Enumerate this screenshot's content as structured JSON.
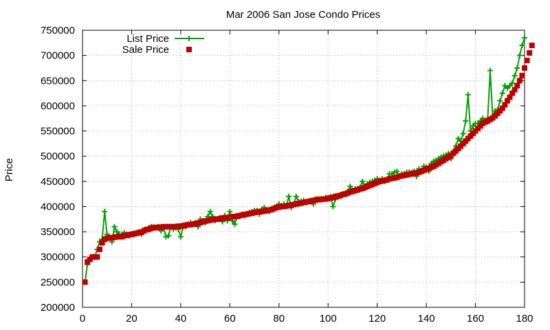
{
  "chart_data": {
    "type": "line",
    "title": "Mar 2006 San Jose Condo Prices",
    "xlabel": "",
    "ylabel": "Price",
    "xlim": [
      0,
      180
    ],
    "ylim": [
      200000,
      750000
    ],
    "x_ticks": [
      0,
      20,
      40,
      60,
      80,
      100,
      120,
      140,
      160,
      180
    ],
    "y_ticks": [
      200000,
      250000,
      300000,
      350000,
      400000,
      450000,
      500000,
      550000,
      600000,
      650000,
      700000,
      750000
    ],
    "x_tick_labels": [
      "0",
      "20",
      "40",
      "60",
      "80",
      "100",
      "120",
      "140",
      "160",
      "180"
    ],
    "y_tick_labels": [
      "200000",
      "250000",
      "300000",
      "350000",
      "400000",
      "450000",
      "500000",
      "550000",
      "600000",
      "650000",
      "700000",
      "750000"
    ],
    "grid": true,
    "legend_position": "top-left",
    "series": [
      {
        "name": "List Price",
        "style": "line+cross",
        "color": "#00a000",
        "values": [
          250000,
          285000,
          295000,
          300000,
          300000,
          315000,
          330000,
          335000,
          390000,
          345000,
          340000,
          330000,
          360000,
          350000,
          345000,
          345000,
          348000,
          345000,
          342000,
          345000,
          345000,
          348000,
          350000,
          345000,
          350000,
          355000,
          358000,
          360000,
          360000,
          358000,
          360000,
          352000,
          358000,
          340000,
          342000,
          360000,
          355000,
          358000,
          355000,
          340000,
          360000,
          360000,
          365000,
          368000,
          365000,
          368000,
          360000,
          375000,
          372000,
          368000,
          380000,
          390000,
          380000,
          372000,
          375000,
          378000,
          370000,
          382000,
          372000,
          390000,
          372000,
          365000,
          380000,
          380000,
          385000,
          382000,
          385000,
          388000,
          390000,
          392000,
          392000,
          385000,
          395000,
          398000,
          392000,
          390000,
          395000,
          398000,
          400000,
          405000,
          402000,
          405000,
          402000,
          420000,
          398000,
          405000,
          420000,
          410000,
          410000,
          412000,
          408000,
          410000,
          412000,
          405000,
          415000,
          415000,
          415000,
          415000,
          418000,
          418000,
          420000,
          400000,
          415000,
          418000,
          420000,
          425000,
          425000,
          430000,
          440000,
          432000,
          435000,
          435000,
          438000,
          450000,
          440000,
          445000,
          448000,
          450000,
          452000,
          455000,
          452000,
          455000,
          450000,
          452000,
          465000,
          465000,
          468000,
          470000,
          460000,
          465000,
          465000,
          468000,
          468000,
          468000,
          470000,
          460000,
          475000,
          470000,
          480000,
          478000,
          470000,
          485000,
          490000,
          492000,
          495000,
          498000,
          500000,
          502000,
          505000,
          495000,
          510000,
          520000,
          535000,
          530000,
          545000,
          570000,
          622000,
          550000,
          560000,
          565000,
          565000,
          570000,
          575000,
          568000,
          575000,
          670000,
          580000,
          590000,
          592000,
          610000,
          625000,
          640000,
          635000,
          640000,
          645000,
          660000,
          675000,
          700000,
          720000,
          735000
        ]
      },
      {
        "name": "Sale Price",
        "style": "filled-square",
        "color": "#c00000",
        "values": [
          250000,
          290000,
          295000,
          300000,
          300000,
          300000,
          315000,
          328000,
          335000,
          337000,
          338000,
          338000,
          339000,
          340000,
          340000,
          340000,
          342000,
          343000,
          344000,
          345000,
          346000,
          347000,
          348000,
          349000,
          352000,
          354000,
          355000,
          357000,
          358000,
          358000,
          359000,
          359000,
          360000,
          360000,
          360000,
          360000,
          360000,
          360000,
          361000,
          361000,
          362000,
          363000,
          364000,
          364000,
          365000,
          366000,
          367000,
          368000,
          370000,
          371000,
          372000,
          373000,
          374000,
          375000,
          375000,
          376000,
          377000,
          378000,
          378000,
          379000,
          380000,
          380000,
          381000,
          382000,
          383000,
          384000,
          385000,
          386000,
          387000,
          388000,
          389000,
          390000,
          390000,
          391000,
          392000,
          393000,
          394000,
          396000,
          398000,
          399000,
          400000,
          400000,
          401000,
          402000,
          403000,
          404000,
          405000,
          406000,
          407000,
          408000,
          409000,
          410000,
          411000,
          412000,
          413000,
          414000,
          414000,
          415000,
          415000,
          416000,
          417000,
          418000,
          420000,
          421000,
          422000,
          424000,
          425000,
          427000,
          429000,
          430000,
          432000,
          433000,
          435000,
          436000,
          438000,
          440000,
          442000,
          444000,
          446000,
          448000,
          450000,
          451000,
          452000,
          453000,
          455000,
          456000,
          457000,
          458000,
          460000,
          461000,
          462000,
          463000,
          464000,
          465000,
          466000,
          467000,
          468000,
          470000,
          472000,
          474000,
          476000,
          478000,
          480000,
          483000,
          486000,
          489000,
          492000,
          495000,
          498000,
          502000,
          506000,
          510000,
          515000,
          520000,
          525000,
          530000,
          535000,
          540000,
          545000,
          550000,
          555000,
          560000,
          565000,
          568000,
          570000,
          573000,
          576000,
          580000,
          585000,
          590000,
          595000,
          602000,
          610000,
          617000,
          625000,
          632000,
          640000,
          650000,
          660000,
          675000,
          690000,
          705000,
          720000
        ]
      }
    ]
  }
}
